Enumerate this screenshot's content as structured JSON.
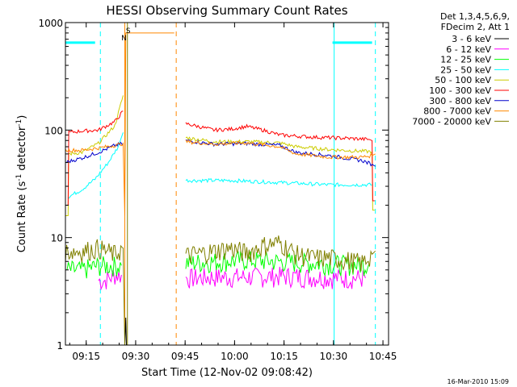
{
  "chart_data": {
    "type": "line",
    "title": "HESSI Observing Summary Count Rates",
    "xlabel": "Start Time (12-Nov-02 09:08:42)",
    "ylabel_main": "Count Rate (s",
    "ylabel_sup1": "-1",
    "ylabel_mid": " detector",
    "ylabel_sup2": "-1",
    "ylabel_end": ")",
    "yscale": "log",
    "ylim": [
      1,
      1000
    ],
    "xlim_minutes": [
      0,
      98
    ],
    "x_ticks": [
      {
        "label": "09:15",
        "t": 6.3
      },
      {
        "label": "09:30",
        "t": 21.3
      },
      {
        "label": "09:45",
        "t": 36.3
      },
      {
        "label": "10:00",
        "t": 51.3
      },
      {
        "label": "10:15",
        "t": 66.3
      },
      {
        "label": "10:30",
        "t": 81.3
      },
      {
        "label": "10:45",
        "t": 96.3
      }
    ],
    "y_ticks": [
      {
        "label": "1",
        "v": 1
      },
      {
        "label": "10",
        "v": 10
      },
      {
        "label": "100",
        "v": 100
      },
      {
        "label": "1000",
        "v": 1000
      }
    ],
    "legend": {
      "header1": "Det 1,3,4,5,6,9,",
      "header2": "FDecim 2, Att 1",
      "placement": "top-right outside"
    },
    "series": [
      {
        "name": "3 - 6 keV",
        "color": "#000000",
        "segments": [
          [
            [
              18.0,
              1.0
            ],
            [
              18.3,
              1.8
            ],
            [
              18.5,
              1.0
            ]
          ]
        ]
      },
      {
        "name": "6 - 12 keV",
        "color": "#ff00ff",
        "segments": [
          [
            [
              10.0,
              4.0
            ],
            [
              12.0,
              4.0
            ],
            [
              15.0,
              4.5
            ],
            [
              17.0,
              4.5
            ]
          ],
          [
            [
              36.5,
              4.2
            ],
            [
              45.0,
              4.3
            ],
            [
              55.0,
              4.3
            ],
            [
              65.0,
              4.4
            ],
            [
              75.0,
              4.3
            ],
            [
              85.0,
              4.2
            ],
            [
              91.0,
              4.2
            ]
          ]
        ]
      },
      {
        "name": "12 - 25 keV",
        "color": "#00ff00",
        "segments": [
          [
            [
              0.5,
              5.0
            ],
            [
              5.0,
              5.0
            ],
            [
              10.0,
              5.5
            ],
            [
              17.0,
              5.5
            ]
          ],
          [
            [
              36.5,
              5.8
            ],
            [
              45.0,
              6.0
            ],
            [
              55.0,
              6.2
            ],
            [
              65.0,
              6.0
            ],
            [
              75.0,
              5.8
            ],
            [
              85.0,
              5.6
            ],
            [
              92.0,
              5.6
            ]
          ]
        ]
      },
      {
        "name": "25 - 50 keV",
        "color": "#00ffff",
        "segments": [
          [
            [
              1.0,
              24.0
            ],
            [
              5.0,
              28.0
            ],
            [
              9.0,
              35.0
            ],
            [
              13.0,
              50.0
            ],
            [
              16.0,
              70.0
            ],
            [
              17.5,
              95.0
            ]
          ],
          [
            [
              36.5,
              34.0
            ],
            [
              50.0,
              34.0
            ],
            [
              60.0,
              33.0
            ],
            [
              70.0,
              32.0
            ],
            [
              80.0,
              31.0
            ],
            [
              88.0,
              31.0
            ],
            [
              93.0,
              31.0
            ]
          ],
          [
            [
              0.0,
              650.0
            ],
            [
              9.0,
              650.0
            ]
          ],
          [
            [
              81.0,
              650.0
            ],
            [
              93.0,
              650.0
            ]
          ]
        ]
      },
      {
        "name": "50 - 100 keV",
        "color": "#cccc00",
        "segments": [
          [
            [
              0.0,
              16.0
            ],
            [
              0.8,
              16.0
            ],
            [
              1.0,
              60.0
            ],
            [
              5.0,
              62.0
            ],
            [
              10.0,
              75.0
            ],
            [
              15.0,
              110.0
            ],
            [
              17.5,
              210.0
            ]
          ],
          [
            [
              36.5,
              85.0
            ],
            [
              45.0,
              78.0
            ],
            [
              55.0,
              78.0
            ],
            [
              65.0,
              76.0
            ],
            [
              70.0,
              70.0
            ],
            [
              80.0,
              66.0
            ],
            [
              88.0,
              64.0
            ],
            [
              93.0,
              63.0
            ],
            [
              93.2,
              18.0
            ],
            [
              93.8,
              18.0
            ]
          ]
        ]
      },
      {
        "name": "100 - 300 keV",
        "color": "#ff0000",
        "segments": [
          [
            [
              0.0,
              20.0
            ],
            [
              0.8,
              20.0
            ],
            [
              1.0,
              95.0
            ],
            [
              5.0,
              98.0
            ],
            [
              10.0,
              100.0
            ],
            [
              15.0,
              120.0
            ],
            [
              17.5,
              150.0
            ]
          ],
          [
            [
              36.5,
              115.0
            ],
            [
              45.0,
              100.0
            ],
            [
              50.0,
              102.0
            ],
            [
              55.0,
              108.0
            ],
            [
              60.0,
              100.0
            ],
            [
              65.0,
              90.0
            ],
            [
              75.0,
              86.0
            ],
            [
              85.0,
              84.0
            ],
            [
              92.0,
              82.0
            ],
            [
              93.0,
              80.0
            ],
            [
              93.2,
              22.0
            ],
            [
              93.8,
              22.0
            ]
          ]
        ]
      },
      {
        "name": "300 - 800 keV",
        "color": "#0000cc",
        "segments": [
          [
            [
              0.0,
              50.0
            ],
            [
              5.0,
              55.0
            ],
            [
              10.0,
              62.0
            ],
            [
              15.0,
              72.0
            ],
            [
              17.5,
              75.0
            ]
          ],
          [
            [
              36.5,
              80.0
            ],
            [
              45.0,
              74.0
            ],
            [
              55.0,
              75.0
            ],
            [
              65.0,
              72.0
            ],
            [
              70.0,
              62.0
            ],
            [
              80.0,
              58.0
            ],
            [
              90.0,
              52.0
            ],
            [
              93.0,
              48.0
            ],
            [
              94.0,
              46.0
            ]
          ]
        ]
      },
      {
        "name": "800 - 7000 keV",
        "color": "#ff8800",
        "segments": [
          [
            [
              0.0,
              65.0
            ],
            [
              5.0,
              65.0
            ],
            [
              10.0,
              68.0
            ],
            [
              15.0,
              72.0
            ],
            [
              17.5,
              75.0
            ],
            [
              18.0,
              16.0
            ],
            [
              18.3,
              800.0
            ],
            [
              20.0,
              800.0
            ],
            [
              32.0,
              800.0
            ],
            [
              33.0,
              800.0
            ]
          ],
          [
            [
              36.5,
              78.0
            ],
            [
              45.0,
              74.0
            ],
            [
              55.0,
              76.0
            ],
            [
              65.0,
              70.0
            ],
            [
              70.0,
              60.0
            ],
            [
              80.0,
              56.0
            ],
            [
              90.0,
              56.0
            ],
            [
              93.0,
              58.0
            ],
            [
              94.0,
              60.0
            ]
          ]
        ]
      },
      {
        "name": "7000 - 20000 keV",
        "color": "#808000",
        "segments": [
          [
            [
              0.0,
              7.5
            ],
            [
              5.0,
              7.5
            ],
            [
              10.0,
              8.0
            ],
            [
              15.0,
              7.0
            ],
            [
              17.5,
              8.0
            ],
            [
              18.0,
              1.0
            ]
          ],
          [
            [
              36.5,
              6.8
            ],
            [
              45.0,
              7.5
            ],
            [
              50.0,
              8.0
            ],
            [
              55.0,
              7.2
            ],
            [
              60.0,
              8.5
            ],
            [
              65.0,
              9.0
            ],
            [
              70.0,
              7.0
            ],
            [
              75.0,
              6.5
            ],
            [
              80.0,
              6.5
            ],
            [
              85.0,
              6.2
            ],
            [
              90.0,
              5.8
            ],
            [
              93.0,
              7.0
            ],
            [
              94.0,
              7.5
            ]
          ]
        ]
      }
    ],
    "markers": [
      {
        "label": "S",
        "t": 18.8,
        "color": "#ff8800"
      },
      {
        "label": "N",
        "t": 18.0,
        "color": "#00ffff"
      }
    ],
    "vlines": [
      {
        "t": 0.0,
        "color": "#00ffff",
        "style": "solid"
      },
      {
        "t": 10.6,
        "color": "#00ffff",
        "style": "dashed"
      },
      {
        "t": 18.0,
        "color": "#ff8800",
        "style": "solid"
      },
      {
        "t": 18.8,
        "color": "#808000",
        "style": "solid"
      },
      {
        "t": 33.6,
        "color": "#ff8800",
        "style": "dashed"
      },
      {
        "t": 81.5,
        "color": "#00ffff",
        "style": "solid"
      },
      {
        "t": 94.0,
        "color": "#00ffff",
        "style": "dashed"
      }
    ],
    "footer": "16-Mar-2010 15:09",
    "grid": false
  }
}
